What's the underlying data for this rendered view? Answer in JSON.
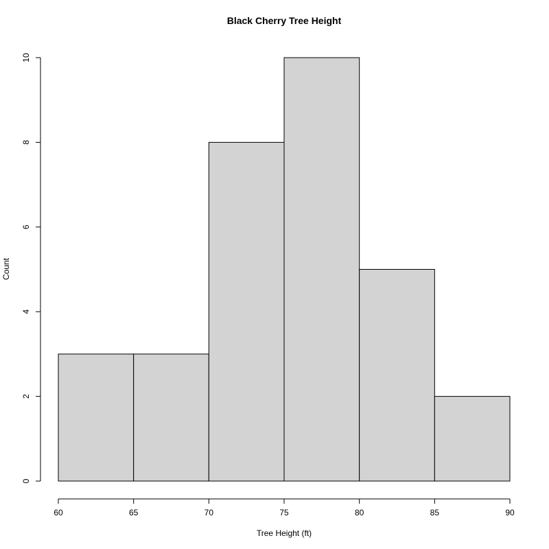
{
  "chart_data": {
    "type": "bar",
    "title": "Black Cherry Tree Height",
    "xlabel": "Tree Height (ft)",
    "ylabel": "Count",
    "bins": [
      {
        "start": 60,
        "end": 65,
        "count": 3
      },
      {
        "start": 65,
        "end": 70,
        "count": 3
      },
      {
        "start": 70,
        "end": 75,
        "count": 8
      },
      {
        "start": 75,
        "end": 80,
        "count": 10
      },
      {
        "start": 80,
        "end": 85,
        "count": 5
      },
      {
        "start": 85,
        "end": 90,
        "count": 2
      }
    ],
    "xlim": [
      60,
      90
    ],
    "ylim": [
      0,
      10
    ],
    "x_ticks": [
      "60",
      "65",
      "70",
      "75",
      "80",
      "85",
      "90"
    ],
    "y_ticks": [
      "0",
      "2",
      "4",
      "6",
      "8",
      "10"
    ],
    "grid": false,
    "colors": {
      "bar_fill": "#d3d3d3",
      "bar_stroke": "#000000"
    }
  }
}
